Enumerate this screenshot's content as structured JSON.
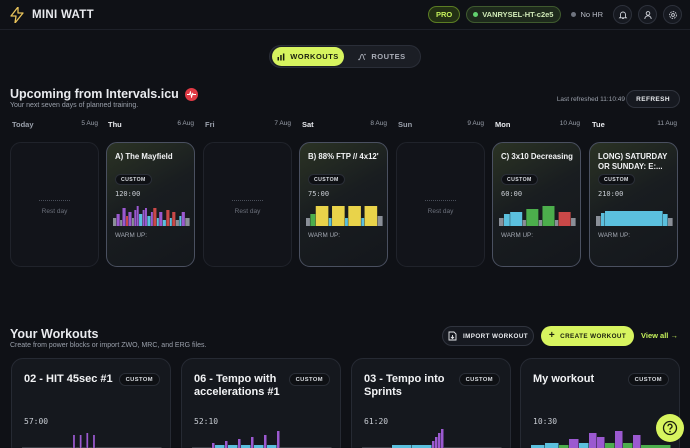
{
  "app": {
    "name": "MINI WATT"
  },
  "header": {
    "pro_badge": "PRO",
    "device": "VANRYSEL-HT-c2e5",
    "hr_status": "No HR"
  },
  "tabs": [
    {
      "label": "WORKOUTS",
      "active": true
    },
    {
      "label": "ROUTES",
      "active": false
    }
  ],
  "upcoming": {
    "title": "Upcoming from Intervals.icu",
    "subtitle": "Your next seven days of planned training.",
    "last_refreshed": "Last refreshed 11:10:49",
    "refresh_label": "REFRESH",
    "rest_label": "Rest day",
    "tag_label": "CUSTOM",
    "warm_label": "WARM UP:",
    "days": [
      {
        "name": "Today",
        "date": "5 Aug",
        "rest": true
      },
      {
        "name": "Thu",
        "date": "6 Aug",
        "rest": false,
        "title": "A) The Mayfield",
        "duration": "120:00",
        "profile": "mayfield"
      },
      {
        "name": "Fri",
        "date": "7 Aug",
        "rest": true
      },
      {
        "name": "Sat",
        "date": "8 Aug",
        "rest": false,
        "title": "B) 88% FTP // 4x12'",
        "duration": "75:00",
        "profile": "ftp"
      },
      {
        "name": "Sun",
        "date": "9 Aug",
        "rest": true
      },
      {
        "name": "Mon",
        "date": "10 Aug",
        "rest": false,
        "title": "C) 3x10 Decreasing",
        "duration": "60:00",
        "profile": "decreasing"
      },
      {
        "name": "Tue",
        "date": "11 Aug",
        "rest": false,
        "title": "LONG) SATURDAY OR SUNDAY: E:...",
        "duration": "210:00",
        "profile": "long"
      }
    ]
  },
  "your_workouts": {
    "title": "Your Workouts",
    "subtitle": "Create from power blocks or import ZWO, MRC, and ERG files.",
    "import_label": "IMPORT WORKOUT",
    "create_label": "CREATE WORKOUT",
    "view_all": "View all →",
    "items": [
      {
        "title": "02 - HIT 45sec #1",
        "tag": "CUSTOM",
        "duration": "57:00"
      },
      {
        "title": "06 - Tempo with accelerations #1",
        "tag": "CUSTOM",
        "duration": "52:10"
      },
      {
        "title": "03 - Tempo into Sprints",
        "tag": "CUSTOM",
        "duration": "61:20"
      },
      {
        "title": "My workout",
        "tag": "CUSTOM",
        "duration": "10:30"
      }
    ]
  },
  "colors": {
    "accent": "#d7f45f",
    "z1": "#8a8f98",
    "z2": "#5bc0de",
    "z3": "#4cae4c",
    "z4": "#e9d34a",
    "z5": "#c94848",
    "z6": "#9b59d0"
  },
  "icons": [
    "bolt-icon",
    "bell-icon",
    "user-icon",
    "gear-icon",
    "bar-chart-icon",
    "route-icon",
    "heartbeat-icon",
    "import-icon",
    "plus-icon",
    "help-icon"
  ]
}
